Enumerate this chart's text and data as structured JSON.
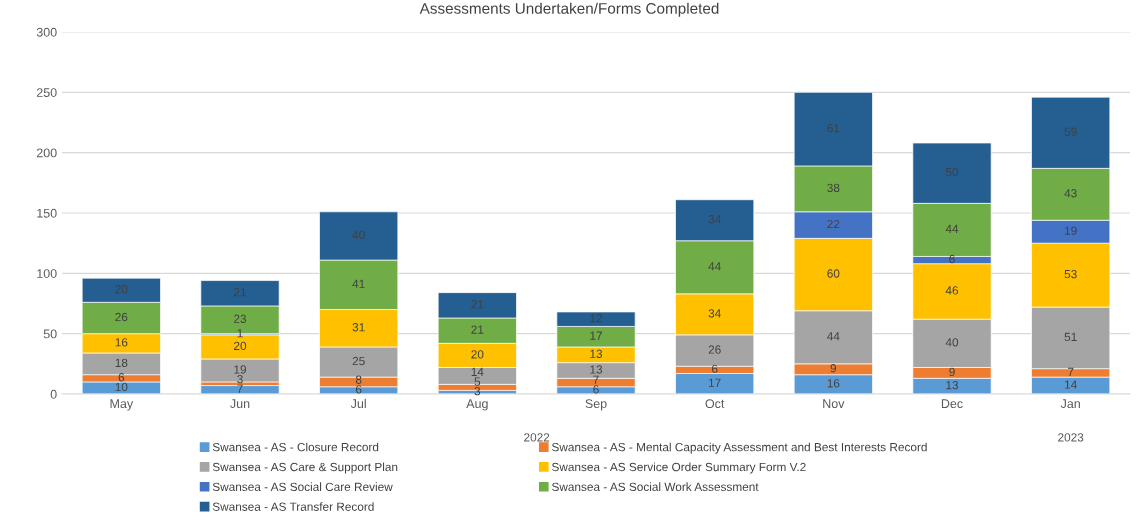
{
  "chart_data": {
    "type": "bar",
    "title": "Assessments Undertaken/Forms Completed",
    "stacked": true,
    "data_labels": true,
    "grid": "y",
    "legend": "bottom",
    "categories": [
      "May",
      "Jun",
      "Jul",
      "Aug",
      "Sep",
      "Oct",
      "Nov",
      "Dec",
      "Jan"
    ],
    "ylim": [
      0,
      300
    ],
    "yticks": [
      0,
      50,
      100,
      150,
      200,
      250,
      300
    ],
    "annotations": [
      "2022",
      "2023"
    ],
    "series": [
      {
        "name": "Swansea - AS - Closure Record",
        "color": "#5b9bd5",
        "values": [
          10,
          7,
          6,
          3,
          6,
          17,
          16,
          13,
          14
        ]
      },
      {
        "name": "Swansea - AS - Mental Capacity Assessment and Best Interests Record",
        "color": "#ed7d31",
        "values": [
          6,
          3,
          8,
          5,
          7,
          6,
          9,
          9,
          7
        ]
      },
      {
        "name": "Swansea - AS Care & Support Plan",
        "color": "#a5a5a5",
        "values": [
          18,
          19,
          25,
          14,
          13,
          26,
          44,
          40,
          51
        ]
      },
      {
        "name": "Swansea - AS Service Order Summary Form V.2",
        "color": "#ffc000",
        "values": [
          16,
          20,
          31,
          20,
          13,
          34,
          60,
          46,
          53
        ]
      },
      {
        "name": "Swansea - AS Social Care Review",
        "color": "#4472c4",
        "values": [
          null,
          1,
          null,
          null,
          null,
          null,
          22,
          6,
          19
        ]
      },
      {
        "name": "Swansea - AS Social Work Assessment",
        "color": "#70ad47",
        "values": [
          26,
          23,
          41,
          21,
          17,
          44,
          38,
          44,
          43
        ]
      },
      {
        "name": "Swansea - AS Transfer Record",
        "color": "#255e91",
        "values": [
          20,
          21,
          40,
          21,
          12,
          34,
          61,
          50,
          59
        ]
      }
    ]
  }
}
